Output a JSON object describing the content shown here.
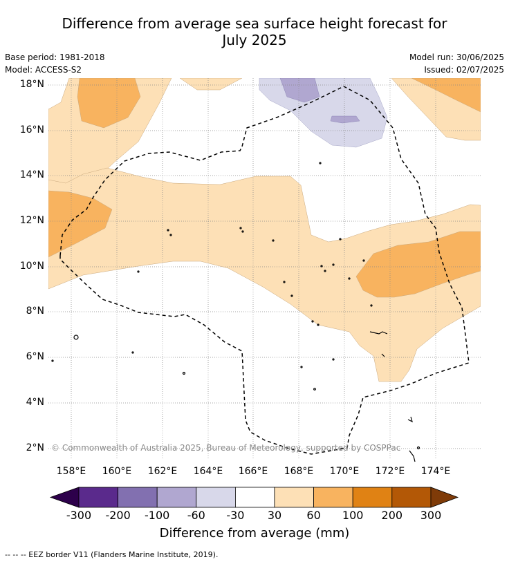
{
  "title": {
    "line1": "Difference from average sea surface height forecast for",
    "line2": "July 2025"
  },
  "meta": {
    "base_period": "Base period: 1981-2018",
    "model": "Model: ACCESS-S2",
    "model_run": "Model run: 30/06/2025",
    "issued": "Issued: 02/07/2025"
  },
  "map": {
    "lat_labels": [
      "18°N",
      "16°N",
      "14°N",
      "12°N",
      "10°N",
      "8°N",
      "6°N",
      "4°N",
      "2°N"
    ],
    "lon_labels": [
      "158°E",
      "160°E",
      "162°E",
      "164°E",
      "166°E",
      "168°E",
      "170°E",
      "172°E",
      "174°E"
    ],
    "copyright": "© Commonwealth of Australia 2025, Bureau of Meteorology, supported by COSPPac"
  },
  "colorbar": {
    "ticks": [
      "-300",
      "-200",
      "-100",
      "-60",
      "-30",
      "30",
      "60",
      "100",
      "200",
      "300"
    ],
    "colors": {
      "below_min": "#2d004b",
      "n300_200": "#5a2a8c",
      "n200_100": "#8270b0",
      "n100_60": "#b0a7d0",
      "n60_30": "#d8d8ea",
      "n30_30": "#ffffff",
      "p30_60": "#fde0b6",
      "p60_100": "#f8b35f",
      "p100_200": "#e08214",
      "p200_300": "#b35806",
      "above_max": "#7f3b08"
    },
    "label": "Difference from average (mm)"
  },
  "footnote": "--  --  -- EEZ border V11 (Flanders Marine Institute, 2019)."
}
